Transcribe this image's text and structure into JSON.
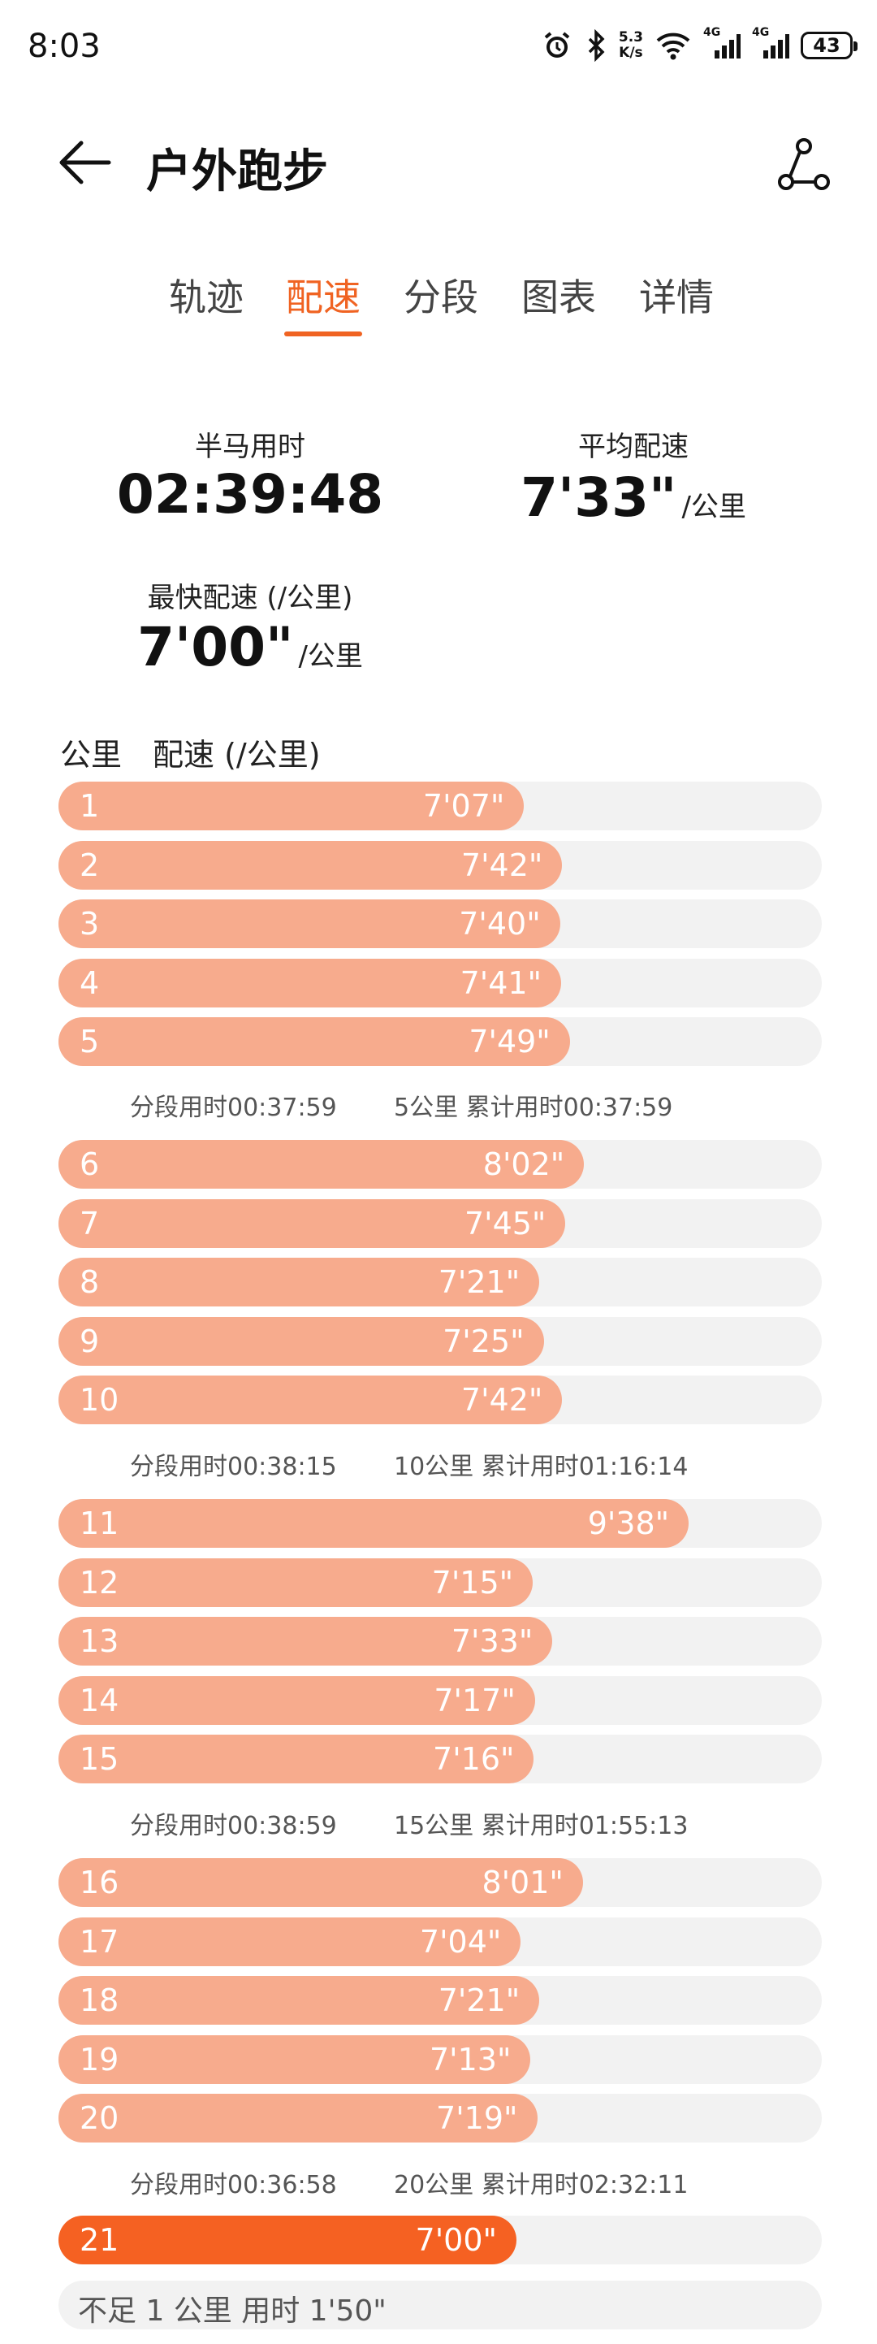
{
  "status": {
    "time": "8:03",
    "net_speed_value": "5.3",
    "net_speed_unit": "K/s",
    "signal1_label": "4G",
    "signal2_label": "4G",
    "battery": "43"
  },
  "header": {
    "title": "户外跑步"
  },
  "tabs": [
    {
      "label": "轨迹"
    },
    {
      "label": "配速"
    },
    {
      "label": "分段"
    },
    {
      "label": "图表"
    },
    {
      "label": "详情"
    }
  ],
  "stats": {
    "half_marathon_label": "半马用时",
    "half_marathon_value": "02:39:48",
    "avg_pace_label": "平均配速",
    "avg_pace_value": "7'33\"",
    "avg_pace_unit": "/公里",
    "fastest_pace_label": "最快配速 (/公里)",
    "fastest_pace_value": "7'00\"",
    "fastest_pace_unit": "/公里"
  },
  "list_header": {
    "km_label": "公里",
    "pace_label": "配速 (/公里)"
  },
  "colors": {
    "accent": "#f06322",
    "bar": "#f7ab8d",
    "bar_fastest": "#f56122",
    "track": "#f2f2f2"
  },
  "max_pace_seconds": 700,
  "splits": [
    {
      "km": "1",
      "pace": "7'07\"",
      "seconds": 427
    },
    {
      "km": "2",
      "pace": "7'42\"",
      "seconds": 462
    },
    {
      "km": "3",
      "pace": "7'40\"",
      "seconds": 460
    },
    {
      "km": "4",
      "pace": "7'41\"",
      "seconds": 461
    },
    {
      "km": "5",
      "pace": "7'49\"",
      "seconds": 469
    },
    {
      "km": "6",
      "pace": "8'02\"",
      "seconds": 482
    },
    {
      "km": "7",
      "pace": "7'45\"",
      "seconds": 465
    },
    {
      "km": "8",
      "pace": "7'21\"",
      "seconds": 441
    },
    {
      "km": "9",
      "pace": "7'25\"",
      "seconds": 445
    },
    {
      "km": "10",
      "pace": "7'42\"",
      "seconds": 462
    },
    {
      "km": "11",
      "pace": "9'38\"",
      "seconds": 578
    },
    {
      "km": "12",
      "pace": "7'15\"",
      "seconds": 435
    },
    {
      "km": "13",
      "pace": "7'33\"",
      "seconds": 453
    },
    {
      "km": "14",
      "pace": "7'17\"",
      "seconds": 437
    },
    {
      "km": "15",
      "pace": "7'16\"",
      "seconds": 436
    },
    {
      "km": "16",
      "pace": "8'01\"",
      "seconds": 481
    },
    {
      "km": "17",
      "pace": "7'04\"",
      "seconds": 424
    },
    {
      "km": "18",
      "pace": "7'21\"",
      "seconds": 441
    },
    {
      "km": "19",
      "pace": "7'13\"",
      "seconds": 433
    },
    {
      "km": "20",
      "pace": "7'19\"",
      "seconds": 439
    },
    {
      "km": "21",
      "pace": "7'00\"",
      "seconds": 420,
      "fastest": true
    }
  ],
  "segment_summaries": [
    {
      "segment": "分段用时00:37:59",
      "cumulative": "5公里 累计用时00:37:59"
    },
    {
      "segment": "分段用时00:38:15",
      "cumulative": "10公里 累计用时01:16:14"
    },
    {
      "segment": "分段用时00:38:59",
      "cumulative": "15公里 累计用时01:55:13"
    },
    {
      "segment": "分段用时00:36:58",
      "cumulative": "20公里 累计用时02:32:11"
    }
  ],
  "remainder": {
    "text": "不足 1 公里 用时 1'50\""
  }
}
